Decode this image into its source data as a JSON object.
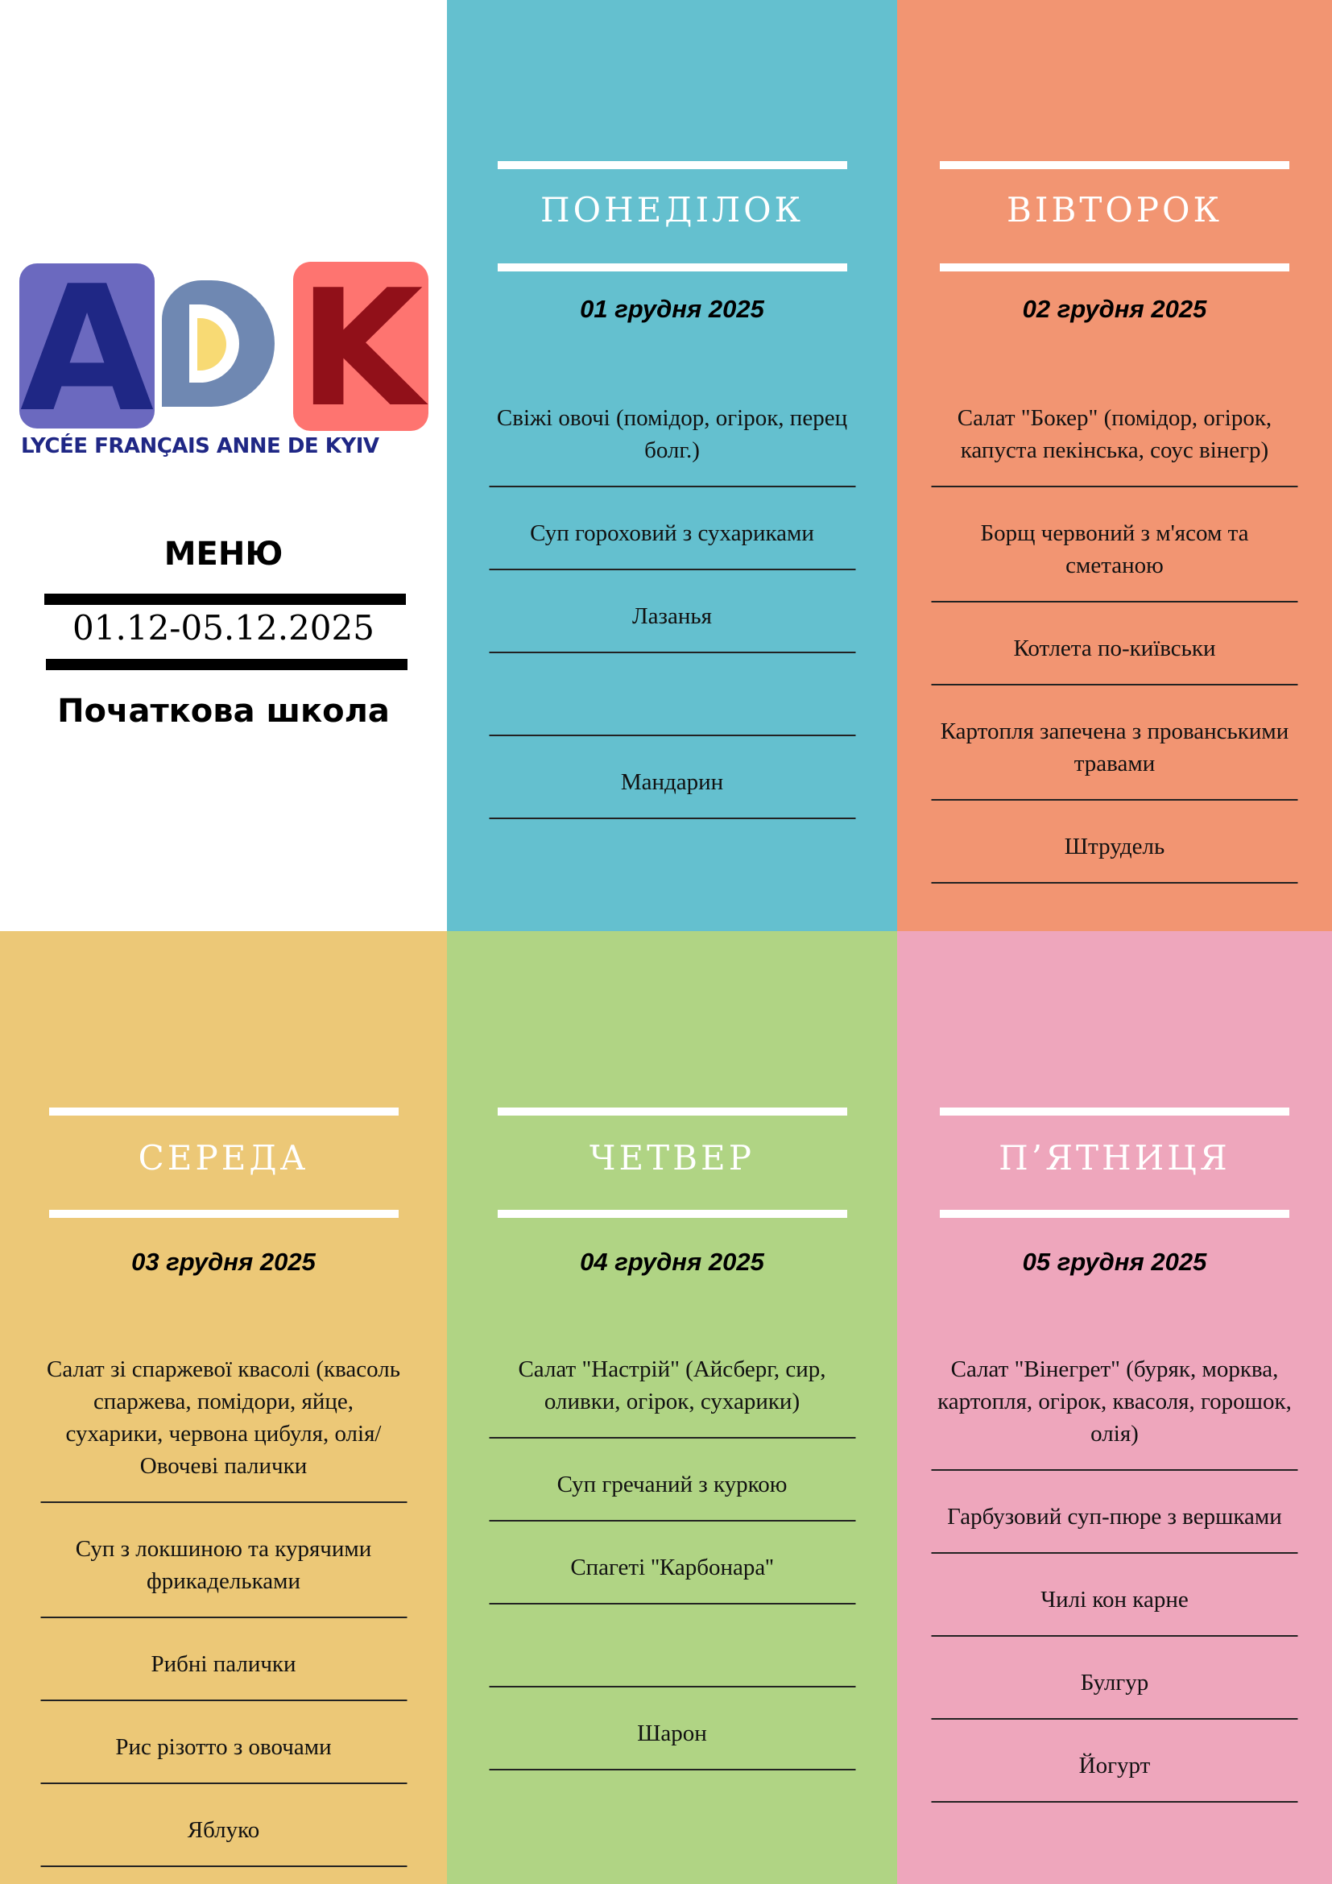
{
  "header": {
    "logo_text": "ADK",
    "school_name": "LYCÉE FRANÇAIS ANNE DE KYIV",
    "title": "МЕНЮ",
    "period": "01.12-05.12.2025",
    "subtitle": "Початкова школа"
  },
  "colors": {
    "monday": "#64c0cf",
    "tuesday": "#f29572",
    "wednesday": "#ecc877",
    "thursday": "#b0d484",
    "friday": "#eea6bc"
  },
  "days": [
    {
      "name": "ПОНЕДІЛОК",
      "date": "01 грудня 2025",
      "items": [
        "Свіжі овочі (помідор, огірок, перец болг.)",
        "Суп гороховий з сухариками",
        "Лазанья",
        "",
        "Мандарин"
      ]
    },
    {
      "name": "ВІВТОРОК",
      "date": "02 грудня 2025",
      "items": [
        "Салат \"Бокер\" (помідор, огірок, капуста пекінська, соус вінегр)",
        "Борщ червоний з м'ясом та сметаною",
        "Котлета по-київськи",
        "Картопля запечена з прованськими травами",
        "Штрудель"
      ]
    },
    {
      "name": "СЕРЕДА",
      "date": "03 грудня 2025",
      "items": [
        "Салат зі спаржевої квасолі (квасоль спаржева, помідори, яйце, сухарики, червона цибуля, олія/Овочеві палички",
        "Суп з локшиною та курячими фрикадельками",
        "Рибні палички",
        "Рис різотто з овочами",
        "Яблуко"
      ]
    },
    {
      "name": "ЧЕТВЕР",
      "date": "04 грудня 2025",
      "items": [
        "Салат \"Настрій\" (Айсберг, сир, оливки, огірок, сухарики)",
        "Суп гречаний з куркою",
        "Спагеті ''Карбонара''",
        "",
        "Шарон"
      ]
    },
    {
      "name": "П’ЯТНИЦЯ",
      "date": "05 грудня 2025",
      "items": [
        "Салат \"Вінегрет\" (буряк, морква, картопля, огірок, квасоля, горошок, олія)",
        "Гарбузовий суп-пюре з вершками",
        "Чилі кон карне",
        "Булгур",
        "Йогурт"
      ]
    }
  ]
}
